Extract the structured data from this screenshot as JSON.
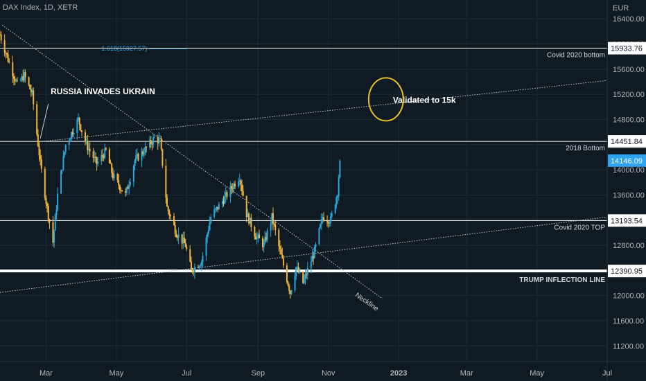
{
  "header": {
    "symbol": "DAX Index, 1D, XETR"
  },
  "colors": {
    "up": "#26a8e0",
    "down": "#f2b63d",
    "bg": "#0f1a22",
    "grid": "#1f2b36",
    "accent_badge": "#2ea4f0"
  },
  "chart_data": {
    "type": "candlestick",
    "currency_label": "EUR",
    "ylim": [
      10950,
      16700
    ],
    "y_ticks": [
      16400,
      16000,
      15600,
      15200,
      14800,
      14400,
      14000,
      13600,
      13200,
      12800,
      12400,
      12000,
      11600,
      11200
    ],
    "y_tick_labels": [
      "16400.00",
      "16000.00",
      "15600.00",
      "15200.00",
      "14800.00",
      "14400.00",
      "14000.00",
      "13600.00",
      "13200.00",
      "12800.00",
      "12400.00",
      "12000.00",
      "11600.00",
      "11200.00"
    ],
    "x_range": [
      "2022-01-20",
      "2023-07-01"
    ],
    "x_ticks": [
      {
        "label": "Mar",
        "date": "2022-03-01",
        "bold": false
      },
      {
        "label": "May",
        "date": "2022-05-01",
        "bold": false
      },
      {
        "label": "Jul",
        "date": "2022-07-01",
        "bold": false
      },
      {
        "label": "Sep",
        "date": "2022-09-01",
        "bold": false
      },
      {
        "label": "Nov",
        "date": "2022-11-01",
        "bold": false
      },
      {
        "label": "2023",
        "date": "2023-01-01",
        "bold": true
      },
      {
        "label": "Mar",
        "date": "2023-03-01",
        "bold": false
      },
      {
        "label": "May",
        "date": "2023-05-01",
        "bold": false
      },
      {
        "label": "Jul",
        "date": "2023-07-01",
        "bold": false
      }
    ],
    "price_path": [
      [
        "2022-01-20",
        16150
      ],
      [
        "2022-01-28",
        15700
      ],
      [
        "2022-02-04",
        15350
      ],
      [
        "2022-02-10",
        15500
      ],
      [
        "2022-02-17",
        15200
      ],
      [
        "2022-02-24",
        14100
      ],
      [
        "2022-03-01",
        13500
      ],
      [
        "2022-03-07",
        12850
      ],
      [
        "2022-03-11",
        13600
      ],
      [
        "2022-03-18",
        14400
      ],
      [
        "2022-03-29",
        14800
      ],
      [
        "2022-04-05",
        14400
      ],
      [
        "2022-04-14",
        14100
      ],
      [
        "2022-04-22",
        14300
      ],
      [
        "2022-04-28",
        13900
      ],
      [
        "2022-05-09",
        13600
      ],
      [
        "2022-05-17",
        14150
      ],
      [
        "2022-05-25",
        14300
      ],
      [
        "2022-06-03",
        14500
      ],
      [
        "2022-06-08",
        14450
      ],
      [
        "2022-06-14",
        13400
      ],
      [
        "2022-06-22",
        13000
      ],
      [
        "2022-06-30",
        12800
      ],
      [
        "2022-07-05",
        12400
      ],
      [
        "2022-07-14",
        12550
      ],
      [
        "2022-07-22",
        13250
      ],
      [
        "2022-08-01",
        13500
      ],
      [
        "2022-08-16",
        13900
      ],
      [
        "2022-08-22",
        13300
      ],
      [
        "2022-08-30",
        12950
      ],
      [
        "2022-09-06",
        12800
      ],
      [
        "2022-09-13",
        13250
      ],
      [
        "2022-09-20",
        12700
      ],
      [
        "2022-09-29",
        12050
      ],
      [
        "2022-10-04",
        12450
      ],
      [
        "2022-10-10",
        12200
      ],
      [
        "2022-10-13",
        12350
      ],
      [
        "2022-10-20",
        12700
      ],
      [
        "2022-10-27",
        13250
      ],
      [
        "2022-11-03",
        13200
      ],
      [
        "2022-11-09",
        13650
      ],
      [
        "2022-11-11",
        14146
      ]
    ],
    "horizontal_levels": [
      {
        "value": 15933.76,
        "label": "15933.76",
        "caption": "Covid 2020 bottom",
        "thick": false
      },
      {
        "value": 14451.84,
        "label": "14451.84",
        "caption": "2018 Bottom",
        "thick": false
      },
      {
        "value": 13193.54,
        "label": "13193.54",
        "caption": "Covid 2020 TOP",
        "thick": false
      },
      {
        "value": 12390.95,
        "label": "12390.95",
        "caption": "TRUMP INFLECTION LINE",
        "thick": true
      }
    ],
    "last_price": {
      "value": 14146.09,
      "label": "14146.09"
    },
    "fib_label": "1.618(15927.57)",
    "fib_value": 15927.57,
    "trendlines": [
      {
        "name": "neckline",
        "points": [
          [
            "2022-01-22",
            16300
          ],
          [
            "2022-12-18",
            11950
          ]
        ],
        "caption": "Neckline"
      },
      {
        "name": "upper-channel",
        "points": [
          [
            "2022-02-26",
            14450
          ],
          [
            "2023-07-01",
            15420
          ]
        ]
      },
      {
        "name": "lower-channel",
        "points": [
          [
            "2022-01-20",
            12050
          ],
          [
            "2023-07-01",
            13250
          ]
        ]
      }
    ],
    "annotations": [
      {
        "text": "RUSSIA INVADES UKRAIN",
        "date": "2022-02-24",
        "price": 14500
      },
      {
        "text": "Validated to 15k",
        "date": "2022-12-20",
        "price": 15120
      }
    ],
    "ellipse": {
      "center_date": "2022-12-21",
      "center_price": 15120
    }
  }
}
